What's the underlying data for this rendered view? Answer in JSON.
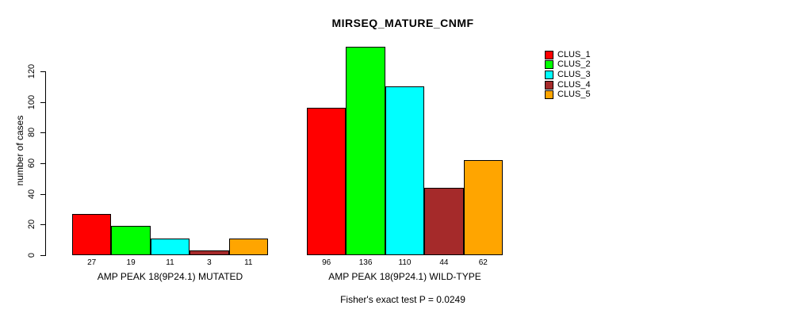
{
  "title": "MIRSEQ_MATURE_CNMF",
  "footer": "Fisher's exact test P = 0.0249",
  "y_axis": {
    "label": "number of cases",
    "ticks": [
      0,
      20,
      40,
      60,
      80,
      100,
      120
    ]
  },
  "legend": {
    "items": [
      {
        "label": "CLUS_1",
        "color": "#FF0000"
      },
      {
        "label": "CLUS_2",
        "color": "#00FF00"
      },
      {
        "label": "CLUS_3",
        "color": "#00FFFF"
      },
      {
        "label": "CLUS_4",
        "color": "#A52A2A"
      },
      {
        "label": "CLUS_5",
        "color": "#FFA500"
      }
    ]
  },
  "chart_data": {
    "type": "bar",
    "title": "MIRSEQ_MATURE_CNMF",
    "xlabel": "",
    "ylabel": "number of cases",
    "ylim": [
      0,
      137
    ],
    "yticks": [
      0,
      20,
      40,
      60,
      80,
      100,
      120
    ],
    "grid": false,
    "legend_position": "top-right",
    "series_names": [
      "CLUS_1",
      "CLUS_2",
      "CLUS_3",
      "CLUS_4",
      "CLUS_5"
    ],
    "series_colors": [
      "#FF0000",
      "#00FF00",
      "#00FFFF",
      "#A52A2A",
      "#FFA500"
    ],
    "groups": [
      {
        "label": "AMP PEAK 18(9P24.1) MUTATED",
        "values": [
          27,
          19,
          11,
          3,
          11
        ]
      },
      {
        "label": "AMP PEAK 18(9P24.1) WILD-TYPE",
        "values": [
          96,
          136,
          110,
          44,
          62
        ]
      }
    ],
    "annotation": "Fisher's exact test P = 0.0249"
  }
}
